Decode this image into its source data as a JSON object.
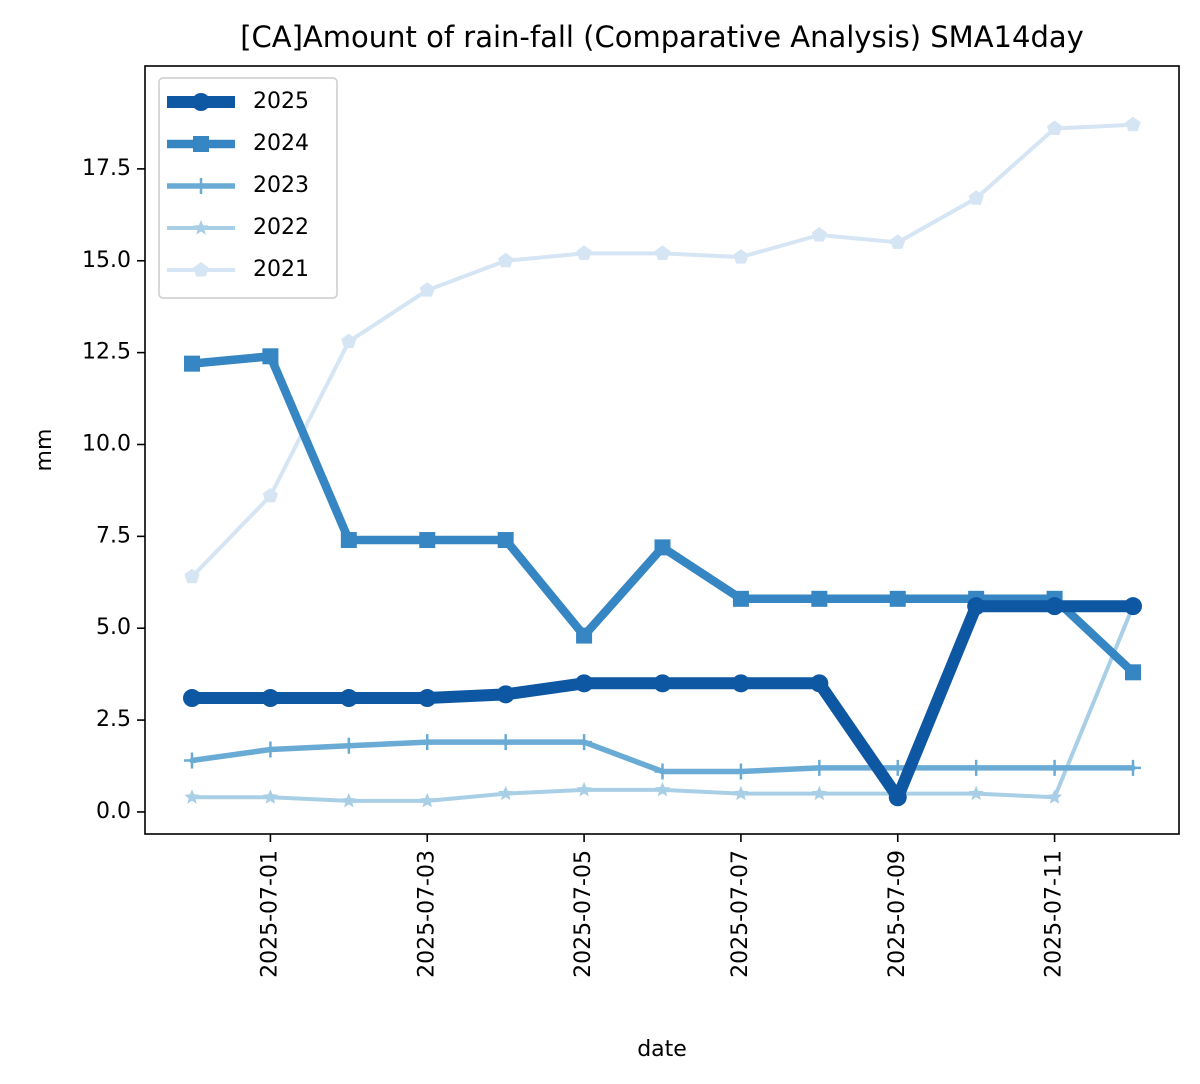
{
  "chart_data": {
    "type": "line",
    "title": "[CA]Amount of rain-fall (Comparative Analysis) SMA14day",
    "xlabel": "date",
    "ylabel": "mm",
    "x": [
      "2025-06-30",
      "2025-07-01",
      "2025-07-02",
      "2025-07-03",
      "2025-07-04",
      "2025-07-05",
      "2025-07-06",
      "2025-07-07",
      "2025-07-08",
      "2025-07-09",
      "2025-07-10",
      "2025-07-11",
      "2025-07-12"
    ],
    "x_tick_labels": [
      "2025-07-01",
      "2025-07-03",
      "2025-07-05",
      "2025-07-07",
      "2025-07-09",
      "2025-07-11"
    ],
    "y_tick_labels": [
      "0.0",
      "2.5",
      "5.0",
      "7.5",
      "10.0",
      "12.5",
      "15.0",
      "17.5"
    ],
    "ylim": [
      -0.6,
      20.3
    ],
    "grid": false,
    "legend_position": "upper-left",
    "series": [
      {
        "name": "2025",
        "color": "#0e57a3",
        "marker": "circle",
        "values": [
          3.1,
          3.1,
          3.1,
          3.1,
          3.2,
          3.5,
          3.5,
          3.5,
          3.5,
          0.4,
          5.6,
          5.6,
          5.6
        ]
      },
      {
        "name": "2024",
        "color": "#3686c3",
        "marker": "square",
        "values": [
          12.2,
          12.4,
          7.4,
          7.4,
          7.4,
          4.8,
          7.2,
          5.8,
          5.8,
          5.8,
          5.8,
          5.8,
          3.8
        ]
      },
      {
        "name": "2023",
        "color": "#6aabd6",
        "marker": "plus",
        "values": [
          1.4,
          1.7,
          1.8,
          1.9,
          1.9,
          1.9,
          1.1,
          1.1,
          1.2,
          1.2,
          1.2,
          1.2,
          1.2
        ]
      },
      {
        "name": "2022",
        "color": "#a9cfe6",
        "marker": "star",
        "values": [
          0.4,
          0.4,
          0.3,
          0.3,
          0.5,
          0.6,
          0.6,
          0.5,
          0.5,
          0.5,
          0.5,
          0.4,
          5.6
        ]
      },
      {
        "name": "2021",
        "color": "#d5e5f4",
        "marker": "pentagon",
        "values": [
          6.4,
          8.6,
          12.8,
          14.2,
          15.0,
          15.2,
          15.2,
          15.1,
          15.7,
          15.5,
          16.7,
          18.6,
          18.7
        ]
      }
    ]
  }
}
